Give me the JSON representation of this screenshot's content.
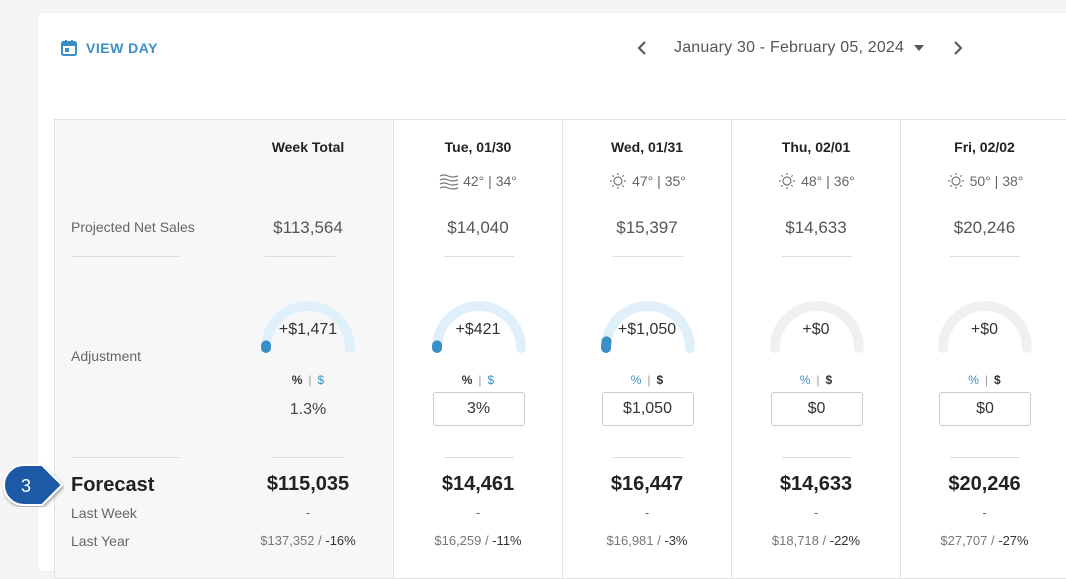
{
  "toolbar": {
    "view_day_label": "VIEW DAY",
    "date_range": "January 30 - February 05, 2024"
  },
  "labels": {
    "projected": "Projected Net Sales",
    "adjustment": "Adjustment",
    "forecast": "Forecast",
    "last_week": "Last Week",
    "last_year": "Last Year"
  },
  "step_badge": "3",
  "toggle": {
    "pct": "%",
    "sep": "|",
    "dollar": "$"
  },
  "columns": [
    {
      "head": "Week Total",
      "weather_icon": "",
      "weather": "",
      "sales": "$113,564",
      "adjust": "+$1,471",
      "adjust_level": 0.02,
      "adjust_mode": "%",
      "adjust_value": "1.3%",
      "forecast": "$115,035",
      "last_week": "-",
      "last_year_value": "$137,352",
      "last_year_sep": " / ",
      "last_year_pct": "-16%"
    },
    {
      "head": "Tue, 01/30",
      "weather_icon": "windy-icon",
      "weather": "42° | 34°",
      "sales": "$14,040",
      "adjust": "+$421",
      "adjust_level": 0.02,
      "adjust_mode": "%",
      "adjust_value": "3%",
      "forecast": "$14,461",
      "last_week": "-",
      "last_year_value": "$16,259",
      "last_year_sep": " / ",
      "last_year_pct": "-11%"
    },
    {
      "head": "Wed, 01/31",
      "weather_icon": "sun-icon",
      "weather": "47° | 35°",
      "sales": "$15,397",
      "adjust": "+$1,050",
      "adjust_level": 0.05,
      "adjust_mode": "$",
      "adjust_value": "$1,050",
      "forecast": "$16,447",
      "last_week": "-",
      "last_year_value": "$16,981",
      "last_year_sep": " / ",
      "last_year_pct": "-3%"
    },
    {
      "head": "Thu, 02/01",
      "weather_icon": "sun-icon",
      "weather": "48° | 36°",
      "sales": "$14,633",
      "adjust": "+$0",
      "adjust_level": 0,
      "adjust_mode": "$",
      "adjust_value": "$0",
      "forecast": "$14,633",
      "last_week": "-",
      "last_year_value": "$18,718",
      "last_year_sep": " / ",
      "last_year_pct": "-22%"
    },
    {
      "head": "Fri, 02/02",
      "weather_icon": "sun-icon",
      "weather": "50° | 38°",
      "sales": "$20,246",
      "adjust": "+$0",
      "adjust_level": 0,
      "adjust_mode": "$",
      "adjust_value": "$0",
      "forecast": "$20,246",
      "last_week": "-",
      "last_year_value": "$27,707",
      "last_year_sep": " / ",
      "last_year_pct": "-27%"
    }
  ],
  "colors": {
    "accent": "#3a8fc7",
    "gauge_track_active": "#dff0fb",
    "gauge_track_idle": "#f0f0f0",
    "gauge_fill": "#3a8fc7",
    "badge": "#1c5aa6"
  }
}
